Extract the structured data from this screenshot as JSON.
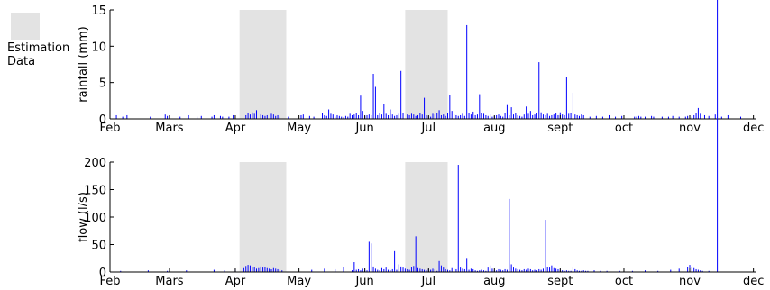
{
  "legend": {
    "label_line1": "Estimation",
    "label_line2": "Data",
    "color": "#e3e3e3"
  },
  "colors": {
    "series": "#0000ff",
    "estimation": "#e3e3e3",
    "axis": "#000000"
  },
  "chart_data": [
    {
      "type": "bar",
      "ylabel": "rainfall (mm)",
      "ylim": [
        0,
        15
      ],
      "yticks": [
        0,
        5,
        10,
        15
      ],
      "xlim": [
        0,
        304
      ],
      "xticks": [
        {
          "label": "Feb",
          "day": 0
        },
        {
          "label": "Mars",
          "day": 28
        },
        {
          "label": "Apr",
          "day": 59
        },
        {
          "label": "May",
          "day": 89
        },
        {
          "label": "Jun",
          "day": 120
        },
        {
          "label": "Jul",
          "day": 150
        },
        {
          "label": "aug",
          "day": 181
        },
        {
          "label": "sept",
          "day": 212
        },
        {
          "label": "oct",
          "day": 242
        },
        {
          "label": "nov",
          "day": 273
        },
        {
          "label": "dec",
          "day": 303
        }
      ],
      "estimation_periods": [
        [
          61,
          83
        ],
        [
          139,
          159
        ]
      ],
      "series": [
        {
          "day": [
            3,
            6,
            8,
            19,
            26,
            27,
            33,
            37,
            41,
            43,
            48,
            49,
            52,
            53,
            56,
            58,
            64,
            65,
            66,
            67,
            68,
            69,
            71,
            72,
            73,
            74,
            76,
            77,
            78,
            79,
            80,
            84,
            90,
            91,
            94,
            96,
            100,
            101,
            102,
            103,
            104,
            105,
            106,
            107,
            108,
            109,
            110,
            111,
            112,
            113,
            114,
            115,
            116,
            117,
            118,
            119,
            120,
            121,
            122,
            123,
            124,
            125,
            126,
            127,
            128,
            129,
            130,
            131,
            132,
            133,
            134,
            135,
            136,
            137,
            138,
            140,
            141,
            142,
            143,
            144,
            145,
            146,
            147,
            148,
            149,
            150,
            151,
            152,
            153,
            154,
            155,
            156,
            157,
            158,
            159,
            160,
            161,
            162,
            163,
            164,
            165,
            166,
            167,
            168,
            169,
            170,
            171,
            172,
            173,
            174,
            175,
            176,
            177,
            178,
            179,
            180,
            181,
            182,
            183,
            184,
            185,
            186,
            187,
            188,
            189,
            190,
            191,
            192,
            193,
            194,
            195,
            196,
            197,
            198,
            199,
            200,
            201,
            202,
            203,
            204,
            205,
            206,
            207,
            208,
            209,
            210,
            211,
            212,
            213,
            214,
            215,
            216,
            217,
            218,
            219,
            220,
            221,
            222,
            223,
            226,
            229,
            232,
            235,
            238,
            241,
            247,
            248,
            249,
            250,
            252,
            255,
            256,
            260,
            263,
            265,
            268,
            271,
            272,
            273,
            274,
            275,
            276,
            277,
            278,
            280,
            282,
            285,
            288,
            291,
            297
          ],
          "values": [
            0.5,
            0.3,
            0.5,
            0.3,
            0.6,
            0.4,
            0.3,
            0.5,
            0.3,
            0.4,
            0.3,
            0.5,
            0.4,
            0.3,
            0.3,
            0.5,
            0.5,
            0.8,
            0.6,
            0.9,
            0.7,
            1.2,
            0.6,
            0.5,
            0.4,
            0.5,
            0.7,
            0.6,
            0.4,
            0.5,
            0.3,
            0.3,
            0.5,
            0.6,
            0.4,
            0.3,
            0.8,
            0.5,
            0.4,
            1.3,
            0.7,
            0.6,
            0.3,
            0.5,
            0.4,
            0.3,
            0.2,
            0.4,
            0.3,
            0.7,
            0.5,
            0.6,
            0.8,
            0.5,
            3.2,
            1.1,
            0.4,
            0.5,
            0.6,
            0.5,
            6.2,
            4.4,
            0.5,
            0.8,
            0.6,
            2.1,
            0.7,
            0.5,
            1.3,
            0.6,
            0.4,
            0.5,
            0.7,
            6.6,
            0.8,
            0.6,
            0.5,
            0.7,
            0.6,
            0.4,
            0.5,
            0.8,
            0.6,
            2.9,
            0.5,
            0.4,
            0.3,
            0.7,
            0.6,
            0.8,
            1.2,
            0.5,
            0.6,
            0.4,
            0.8,
            3.3,
            1.1,
            0.6,
            0.5,
            0.4,
            0.5,
            0.7,
            0.4,
            12.9,
            0.8,
            0.6,
            1.0,
            0.5,
            0.6,
            3.4,
            0.8,
            0.7,
            0.5,
            0.4,
            0.6,
            0.3,
            0.4,
            0.5,
            0.6,
            0.4,
            0.3,
            0.8,
            1.9,
            0.5,
            1.6,
            0.6,
            0.8,
            0.5,
            0.4,
            0.3,
            0.6,
            1.7,
            0.7,
            1.1,
            0.5,
            0.6,
            0.8,
            7.8,
            0.9,
            0.6,
            0.5,
            0.7,
            0.4,
            0.5,
            0.6,
            0.8,
            0.5,
            0.9,
            0.6,
            0.5,
            5.8,
            0.7,
            0.8,
            3.6,
            0.6,
            0.5,
            0.4,
            0.6,
            0.5,
            0.3,
            0.4,
            0.3,
            0.5,
            0.3,
            0.4,
            0.3,
            0.3,
            0.4,
            0.3,
            0.3,
            0.4,
            0.3,
            0.3,
            0.3,
            0.4,
            0.3,
            0.3,
            0.4,
            0.3,
            0.3,
            0.5,
            0.8,
            1.5,
            0.7,
            0.5,
            0.4,
            0.6,
            0.3,
            0.5,
            0.3,
            0.4,
            0.3
          ]
        }
      ]
    },
    {
      "type": "bar",
      "ylabel": "flow (l/s)",
      "ylim": [
        0,
        200
      ],
      "yticks": [
        0,
        50,
        100,
        150,
        200
      ],
      "xlim": [
        0,
        304
      ],
      "xticks": [
        {
          "label": "Feb",
          "day": 0
        },
        {
          "label": "Mars",
          "day": 28
        },
        {
          "label": "Apr",
          "day": 59
        },
        {
          "label": "May",
          "day": 89
        },
        {
          "label": "Jun",
          "day": 120
        },
        {
          "label": "Jul",
          "day": 150
        },
        {
          "label": "aug",
          "day": 181
        },
        {
          "label": "sept",
          "day": 212
        },
        {
          "label": "oct",
          "day": 242
        },
        {
          "label": "nov",
          "day": 273
        },
        {
          "label": "dec",
          "day": 303
        }
      ],
      "estimation_periods": [
        [
          61,
          83
        ],
        [
          139,
          159
        ]
      ],
      "series": [
        {
          "day": [
            5,
            18,
            27,
            36,
            49,
            54,
            59,
            63,
            64,
            65,
            66,
            67,
            68,
            69,
            70,
            71,
            72,
            73,
            74,
            75,
            76,
            77,
            78,
            79,
            80,
            81,
            95,
            101,
            106,
            110,
            114,
            115,
            116,
            117,
            118,
            119,
            120,
            121,
            122,
            123,
            124,
            125,
            126,
            127,
            128,
            129,
            130,
            131,
            132,
            133,
            134,
            135,
            136,
            137,
            138,
            139,
            140,
            141,
            142,
            143,
            144,
            145,
            146,
            147,
            148,
            149,
            150,
            151,
            152,
            153,
            154,
            155,
            156,
            157,
            158,
            159,
            160,
            161,
            162,
            163,
            164,
            165,
            166,
            167,
            168,
            169,
            170,
            171,
            172,
            173,
            174,
            175,
            176,
            177,
            178,
            179,
            180,
            181,
            182,
            183,
            184,
            185,
            186,
            187,
            188,
            189,
            190,
            191,
            192,
            193,
            194,
            195,
            196,
            197,
            198,
            199,
            200,
            201,
            202,
            203,
            204,
            205,
            206,
            207,
            208,
            209,
            210,
            211,
            212,
            213,
            214,
            215,
            216,
            217,
            218,
            219,
            220,
            221,
            222,
            223,
            224,
            225,
            228,
            231,
            234,
            240,
            246,
            252,
            258,
            264,
            268,
            272,
            273,
            274,
            275,
            276,
            277,
            278,
            279,
            282,
            286
          ],
          "values": [
            2,
            3,
            2,
            3,
            4,
            3,
            5,
            7,
            11,
            13,
            12,
            8,
            9,
            6,
            7,
            10,
            8,
            9,
            7,
            6,
            5,
            7,
            6,
            5,
            4,
            3,
            4,
            6,
            5,
            9,
            3,
            18,
            4,
            5,
            3,
            6,
            4,
            3,
            55,
            52,
            10,
            6,
            4,
            3,
            7,
            5,
            8,
            4,
            3,
            5,
            38,
            4,
            14,
            10,
            8,
            6,
            5,
            4,
            9,
            11,
            65,
            7,
            6,
            5,
            4,
            3,
            5,
            4,
            6,
            5,
            2,
            20,
            12,
            8,
            5,
            4,
            3,
            7,
            6,
            5,
            195,
            8,
            6,
            5,
            24,
            4,
            6,
            5,
            3,
            2,
            3,
            4,
            3,
            2,
            8,
            12,
            6,
            4,
            3,
            5,
            4,
            3,
            5,
            4,
            133,
            14,
            8,
            6,
            5,
            4,
            3,
            5,
            4,
            6,
            5,
            3,
            4,
            3,
            5,
            4,
            6,
            95,
            9,
            8,
            12,
            7,
            6,
            5,
            4,
            3,
            2,
            3,
            2,
            2,
            8,
            5,
            3,
            2,
            2,
            3,
            2,
            2,
            3,
            2,
            2,
            2,
            2,
            3,
            2,
            4,
            6,
            9,
            13,
            8,
            7,
            5,
            4,
            3,
            2,
            2
          ]
        }
      ]
    }
  ]
}
